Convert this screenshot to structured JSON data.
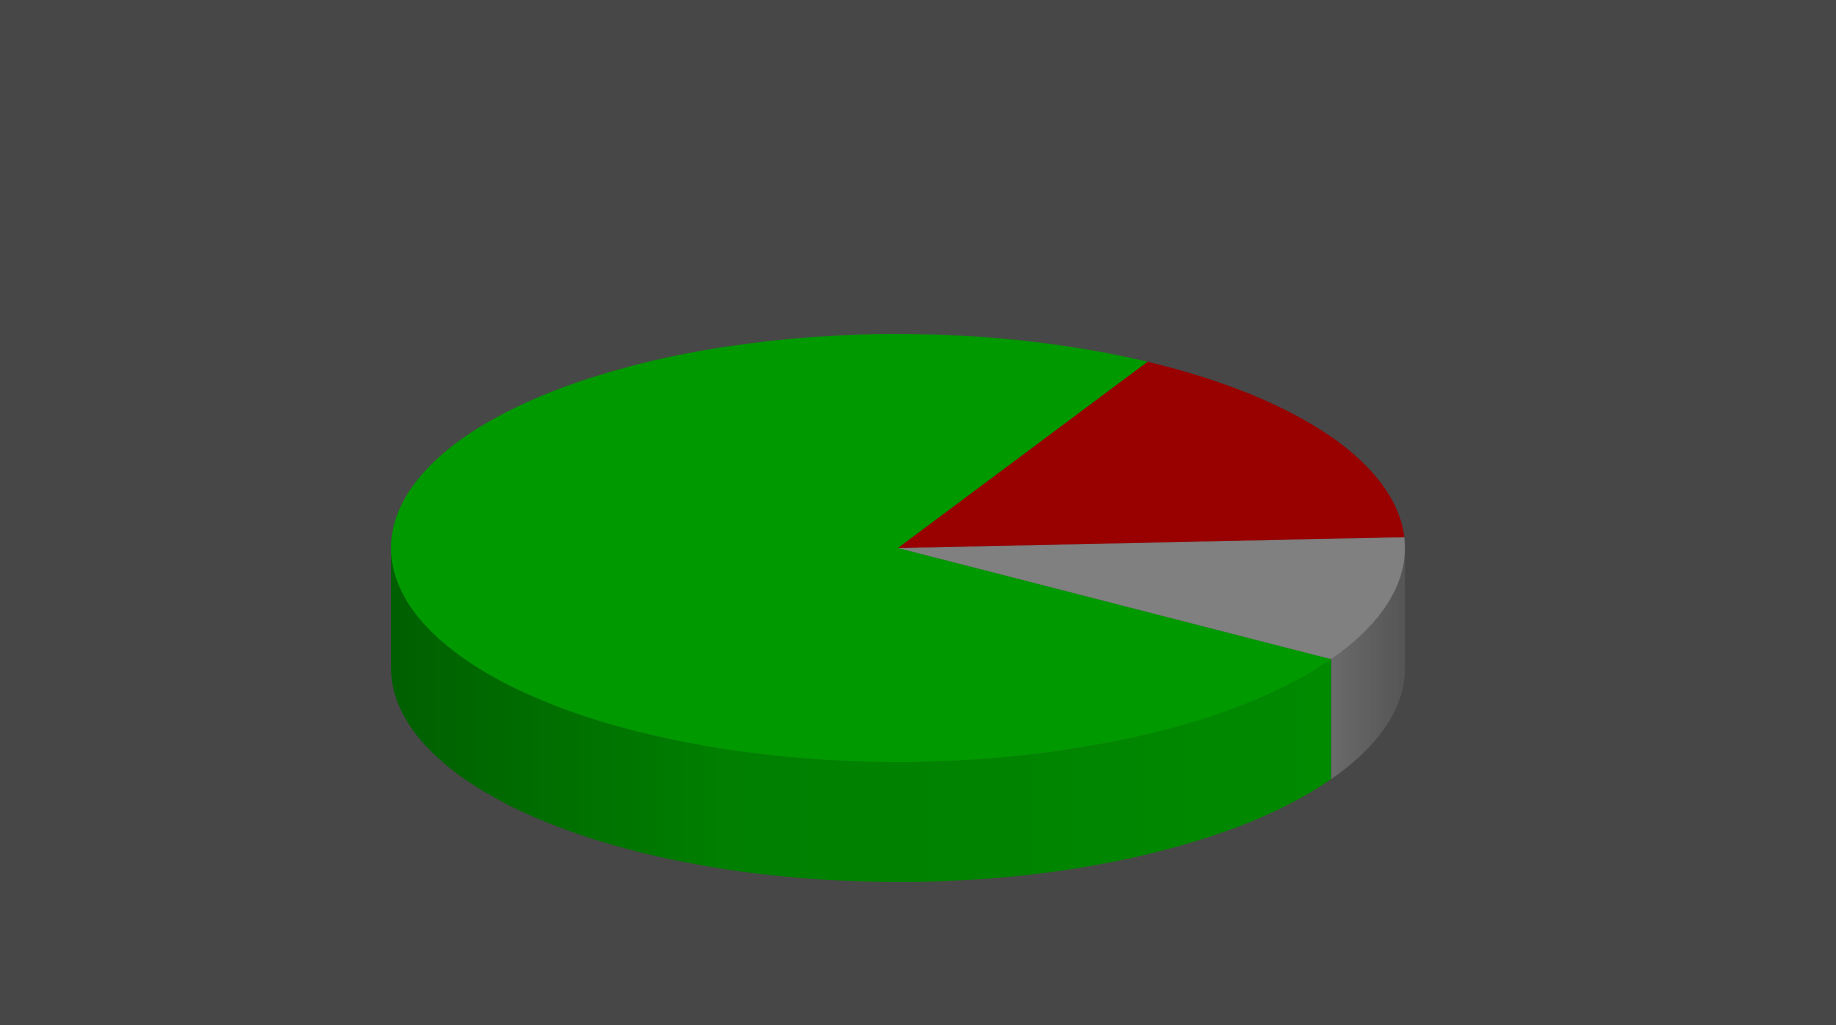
{
  "background_color": "#474747",
  "chart_data": {
    "type": "pie",
    "style": "3d",
    "title": "",
    "labels_shown": false,
    "legend": "none",
    "slices": [
      {
        "value": 74.5,
        "top_color": "#009900",
        "side_color_light": "#008c00",
        "side_color_dark": "#006a00"
      },
      {
        "value": 9.5,
        "top_color": "#808080",
        "side_color_light": "#707070",
        "side_color_dark": "#5a5a5a"
      },
      {
        "value": 16.0,
        "top_color": "#990000",
        "side_color_light": "#7d0000",
        "side_color_dark": "#600000"
      }
    ]
  }
}
